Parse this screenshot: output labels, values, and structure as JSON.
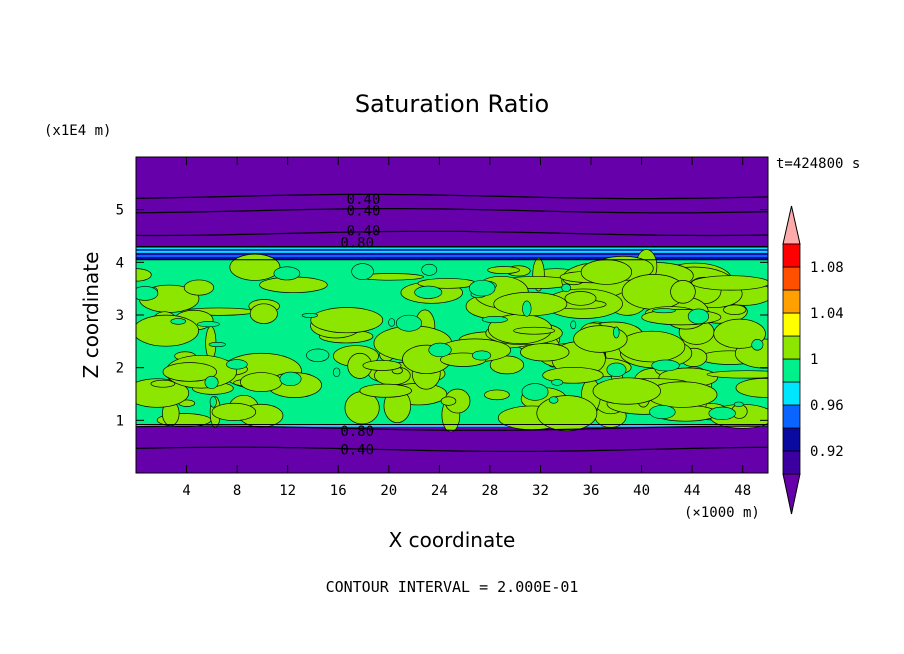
{
  "chart_data": {
    "type": "heatmap",
    "title": "Saturation Ratio",
    "xlabel": "X coordinate",
    "ylabel": "Z coordinate",
    "x_unit": "(×1000 m)",
    "y_unit": "(x1E4 m)",
    "time_label": "t=424800 s",
    "contour_interval": "CONTOUR INTERVAL = 2.000E-01",
    "xlim": [
      0,
      50
    ],
    "ylim": [
      0,
      6
    ],
    "x_ticks": [
      4,
      8,
      12,
      16,
      20,
      24,
      28,
      32,
      36,
      40,
      44,
      48
    ],
    "x_tick_labels": [
      "4",
      "8",
      "12",
      "16",
      "20",
      "24",
      "28",
      "32",
      "36",
      "40",
      "44",
      "48"
    ],
    "y_ticks": [
      1,
      2,
      3,
      4,
      5
    ],
    "y_tick_labels": [
      "1",
      "2",
      "3",
      "4",
      "5"
    ],
    "contour_labels": [
      {
        "text": "0.40",
        "x": 18,
        "y": 5.2
      },
      {
        "text": "0.40",
        "x": 18,
        "y": 4.98
      },
      {
        "text": "0.40",
        "x": 18,
        "y": 4.6
      },
      {
        "text": "0.80",
        "x": 17.5,
        "y": 4.38
      },
      {
        "text": "0.80",
        "x": 17.5,
        "y": 0.8
      },
      {
        "text": "0.40",
        "x": 17.5,
        "y": 0.45
      }
    ],
    "contour_lines_y": [
      5.25,
      4.98,
      4.55,
      0.85,
      0.45
    ],
    "layers": [
      {
        "z_min": 0.0,
        "z_max": 0.88,
        "value_class": "below 0.92"
      },
      {
        "z_min": 0.88,
        "z_max": 0.93,
        "value_class": "0.96-1"
      },
      {
        "z_min": 0.93,
        "z_max": 4.05,
        "value_class": "0.98-1.02"
      },
      {
        "z_min": 4.05,
        "z_max": 4.3,
        "value_class": "0.92-0.98"
      },
      {
        "z_min": 4.3,
        "z_max": 6.0,
        "value_class": "below 0.92"
      }
    ],
    "colorbar": {
      "colors": [
        "#6600aa",
        "#3c00a0",
        "#0a0aa0",
        "#0a64ff",
        "#00e6ff",
        "#00f08c",
        "#8ce600",
        "#ffff00",
        "#ffa000",
        "#ff5000",
        "#ff0000",
        "#ffaaaa"
      ],
      "tick_labels": [
        "0.92",
        "0.96",
        "1",
        "1.04",
        "1.08"
      ],
      "levels": [
        0.92,
        0.96,
        1.0,
        1.04,
        1.08
      ],
      "min": 0.9,
      "max": 1.1
    }
  }
}
